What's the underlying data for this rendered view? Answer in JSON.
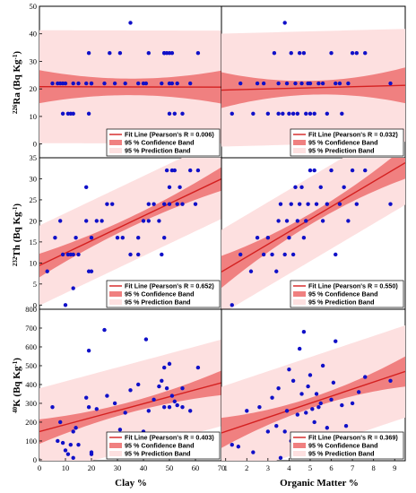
{
  "chart_data": {
    "type": "scatter",
    "panel_layout": "3 rows x 2 columns, shared axes",
    "x_axes": [
      {
        "label": "Clay %",
        "lim": [
          0,
          70
        ],
        "ticks": [
          0,
          10,
          20,
          30,
          40,
          50,
          60,
          70
        ]
      },
      {
        "label": "Organic Matter %",
        "lim": [
          0.8,
          9.5
        ],
        "ticks": [
          1,
          2,
          3,
          4,
          5,
          6,
          7,
          8,
          9
        ]
      }
    ],
    "y_axes": [
      {
        "label_sup": "226",
        "label_main": "Ra (Bq Kg",
        "label_exp": "-1",
        "label_close": ")",
        "lim": [
          -5,
          50
        ],
        "ticks": [
          0,
          10,
          20,
          30,
          40,
          50
        ]
      },
      {
        "label_sup": "232",
        "label_main": "Th (Bq Kg",
        "label_exp": "-1",
        "label_close": ")",
        "lim": [
          -1,
          35
        ],
        "ticks": [
          0,
          5,
          10,
          15,
          20,
          25,
          30,
          35
        ]
      },
      {
        "label_sup": "40",
        "label_main": "K (Bq Kg",
        "label_exp": "-1",
        "label_close": ")",
        "lim": [
          -5,
          800
        ],
        "ticks": [
          0,
          100,
          200,
          300,
          400,
          500,
          600,
          700,
          800
        ]
      }
    ],
    "colors": {
      "points": "#1010c8",
      "fit_line": "#d42020",
      "confidence_band": "#f08080",
      "prediction_band": "#fde0e0"
    },
    "legend_placement": "bottom-right",
    "legend": {
      "fit_prefix": "Fit Line (Pearson's R = ",
      "fit_suffix": ")",
      "confidence": "95 % Confidence Band",
      "prediction": "95 % Prediction Band"
    },
    "panels": [
      {
        "row": 0,
        "col": 0,
        "pearson_r": "0.006",
        "fit": {
          "slope": -0.002,
          "intercept": 20.8
        },
        "conf_halfwidth": [
          6.0,
          3.0,
          6.5
        ],
        "pred_halfwidth": 20.5,
        "x": [
          5,
          7,
          8,
          9,
          9,
          10,
          11,
          12,
          13,
          13,
          15,
          18,
          19,
          19,
          20,
          20,
          25,
          27,
          29,
          31,
          33,
          35,
          38,
          40,
          41,
          42,
          47,
          48,
          48,
          49,
          50,
          50,
          50,
          51,
          51,
          52,
          53,
          55,
          58,
          61
        ],
        "y": [
          22,
          22,
          22,
          11,
          22,
          22,
          11,
          11,
          22,
          11,
          22,
          22,
          33,
          11,
          22,
          22,
          22,
          33,
          22,
          33,
          22,
          44,
          22,
          22,
          22,
          33,
          22,
          33,
          33,
          33,
          33,
          22,
          11,
          22,
          33,
          11,
          22,
          11,
          22,
          33
        ]
      },
      {
        "row": 0,
        "col": 1,
        "pearson_r": "0.032",
        "fit": {
          "slope": 0.2,
          "intercept": 19.4
        },
        "conf_halfwidth": [
          6.5,
          2.5,
          6.5
        ],
        "pred_halfwidth": 20.5,
        "x": [
          1.3,
          1.7,
          2.3,
          2.5,
          2.8,
          3.0,
          3.3,
          3.5,
          3.5,
          3.7,
          3.8,
          3.9,
          4.0,
          4.1,
          4.2,
          4.3,
          4.4,
          4.5,
          4.6,
          4.7,
          4.8,
          4.9,
          5.0,
          5.0,
          5.2,
          5.4,
          5.6,
          5.8,
          6.0,
          6.2,
          6.4,
          6.5,
          6.8,
          7.0,
          7.2,
          7.6,
          8.8
        ],
        "y": [
          11,
          22,
          11,
          22,
          22,
          11,
          33,
          11,
          22,
          11,
          44,
          22,
          11,
          33,
          11,
          22,
          11,
          33,
          22,
          33,
          11,
          22,
          11,
          22,
          11,
          22,
          22,
          11,
          33,
          22,
          22,
          11,
          22,
          33,
          33,
          33,
          22
        ]
      },
      {
        "row": 1,
        "col": 0,
        "pearson_r": "0.652",
        "fit": {
          "slope": 0.294,
          "intercept": 9.4
        },
        "conf_halfwidth": [
          2.8,
          1.2,
          2.8
        ],
        "pred_halfwidth": 9.5,
        "x": [
          3,
          6,
          8,
          9,
          10,
          11,
          12,
          13,
          13,
          14,
          15,
          18,
          18,
          19,
          20,
          20,
          22,
          24,
          26,
          28,
          30,
          32,
          35,
          38,
          38,
          40,
          42,
          42,
          44,
          46,
          47,
          48,
          48,
          49,
          50,
          50,
          51,
          52,
          53,
          54,
          55,
          58,
          60,
          61
        ],
        "y": [
          8,
          16,
          20,
          12,
          0,
          12,
          12,
          12,
          4,
          16,
          12,
          20,
          28,
          8,
          8,
          16,
          20,
          20,
          24,
          24,
          16,
          16,
          12,
          12,
          16,
          20,
          24,
          20,
          24,
          20,
          12,
          24,
          16,
          32,
          24,
          28,
          32,
          32,
          24,
          28,
          24,
          32,
          24,
          32
        ]
      },
      {
        "row": 1,
        "col": 1,
        "pearson_r": "0.550",
        "fit": {
          "slope": 2.98,
          "intercept": 5.5
        },
        "conf_halfwidth": [
          3.8,
          1.3,
          3.8
        ],
        "pred_halfwidth": 10.0,
        "x": [
          1.3,
          1.7,
          2.2,
          2.5,
          2.8,
          3.0,
          3.2,
          3.4,
          3.5,
          3.6,
          3.8,
          3.9,
          4.0,
          4.1,
          4.2,
          4.3,
          4.4,
          4.5,
          4.6,
          4.7,
          4.8,
          4.9,
          5.0,
          5.1,
          5.2,
          5.3,
          5.5,
          5.6,
          5.8,
          6.0,
          6.2,
          6.4,
          6.6,
          6.8,
          7.0,
          7.2,
          7.6,
          8.8
        ],
        "y": [
          0,
          12,
          8,
          16,
          12,
          16,
          12,
          8,
          20,
          24,
          12,
          20,
          16,
          24,
          12,
          28,
          20,
          24,
          28,
          16,
          20,
          24,
          32,
          4,
          32,
          24,
          28,
          20,
          24,
          32,
          12,
          24,
          28,
          20,
          32,
          24,
          32,
          24
        ]
      },
      {
        "row": 2,
        "col": 0,
        "pearson_r": "0.403",
        "fit": {
          "slope": 3.7,
          "intercept": 150
        },
        "conf_halfwidth": [
          65,
          28,
          65
        ],
        "pred_halfwidth": 230,
        "x": [
          5,
          7,
          8,
          9,
          10,
          11,
          12,
          13,
          13,
          14,
          15,
          18,
          19,
          19,
          20,
          20,
          22,
          25,
          26,
          29,
          31,
          33,
          35,
          38,
          40,
          41,
          42,
          44,
          46,
          47,
          48,
          48,
          49,
          50,
          50,
          51,
          52,
          53,
          55,
          55,
          58,
          61
        ],
        "y": [
          280,
          100,
          200,
          90,
          50,
          30,
          80,
          150,
          10,
          170,
          80,
          330,
          580,
          280,
          30,
          40,
          270,
          690,
          340,
          300,
          160,
          250,
          370,
          400,
          150,
          640,
          260,
          320,
          390,
          420,
          280,
          490,
          380,
          280,
          510,
          340,
          310,
          290,
          380,
          280,
          260,
          490
        ]
      },
      {
        "row": 2,
        "col": 1,
        "pearson_r": "0.369",
        "fit": {
          "slope": 37.5,
          "intercept": 113
        },
        "conf_halfwidth": [
          80,
          28,
          80
        ],
        "pred_halfwidth": 245,
        "x": [
          1.3,
          1.6,
          2.0,
          2.3,
          2.6,
          3.0,
          3.2,
          3.4,
          3.5,
          3.6,
          3.8,
          3.9,
          4.0,
          4.1,
          4.2,
          4.3,
          4.4,
          4.5,
          4.6,
          4.7,
          4.8,
          4.9,
          5.0,
          5.1,
          5.2,
          5.3,
          5.4,
          5.5,
          5.6,
          5.8,
          6.0,
          6.1,
          6.2,
          6.5,
          6.7,
          7.0,
          7.3,
          7.6,
          8.8
        ],
        "y": [
          80,
          70,
          260,
          40,
          280,
          150,
          330,
          180,
          380,
          10,
          150,
          260,
          480,
          100,
          420,
          40,
          240,
          590,
          350,
          680,
          250,
          390,
          450,
          270,
          200,
          350,
          280,
          300,
          500,
          170,
          320,
          410,
          630,
          290,
          180,
          300,
          360,
          440,
          420
        ]
      }
    ]
  }
}
